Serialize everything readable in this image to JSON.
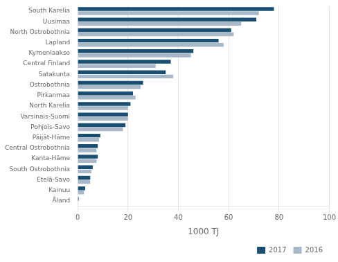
{
  "chart_data": {
    "type": "bar",
    "orientation": "horizontal",
    "categories": [
      "South Karelia",
      "Uusimaa",
      "North Ostrobothnia",
      "Lapland",
      "Kymenlaakso",
      "Central Finland",
      "Satakunta",
      "Ostrobothnia",
      "Pirkanmaa",
      "North Karelia",
      "Varsinais-Suomi",
      "Pohjois-Savo",
      "Päijät-Häme",
      "Central Ostrobothnia",
      "Kanta-Häme",
      "South Ostrobothnia",
      "Etelä-Savo",
      "Kainuu",
      "Åland"
    ],
    "series": [
      {
        "name": "2017",
        "color": "#1a4f72",
        "values": [
          78,
          71,
          61,
          56,
          46,
          37,
          35,
          26,
          22,
          21,
          20,
          19,
          9,
          8,
          8,
          6,
          5,
          3,
          0.4
        ]
      },
      {
        "name": "2016",
        "color": "#a8b8c8",
        "values": [
          72,
          65,
          62,
          58,
          45,
          31,
          38,
          25,
          23,
          20,
          20,
          18,
          8.5,
          7.5,
          7.5,
          5.5,
          5,
          2.5,
          0.2
        ]
      }
    ],
    "xlabel": "1000 TJ",
    "xlim": [
      0,
      100
    ],
    "xticks": [
      0,
      20,
      40,
      60,
      80,
      100
    ],
    "grid": true,
    "legend": "lower right"
  }
}
